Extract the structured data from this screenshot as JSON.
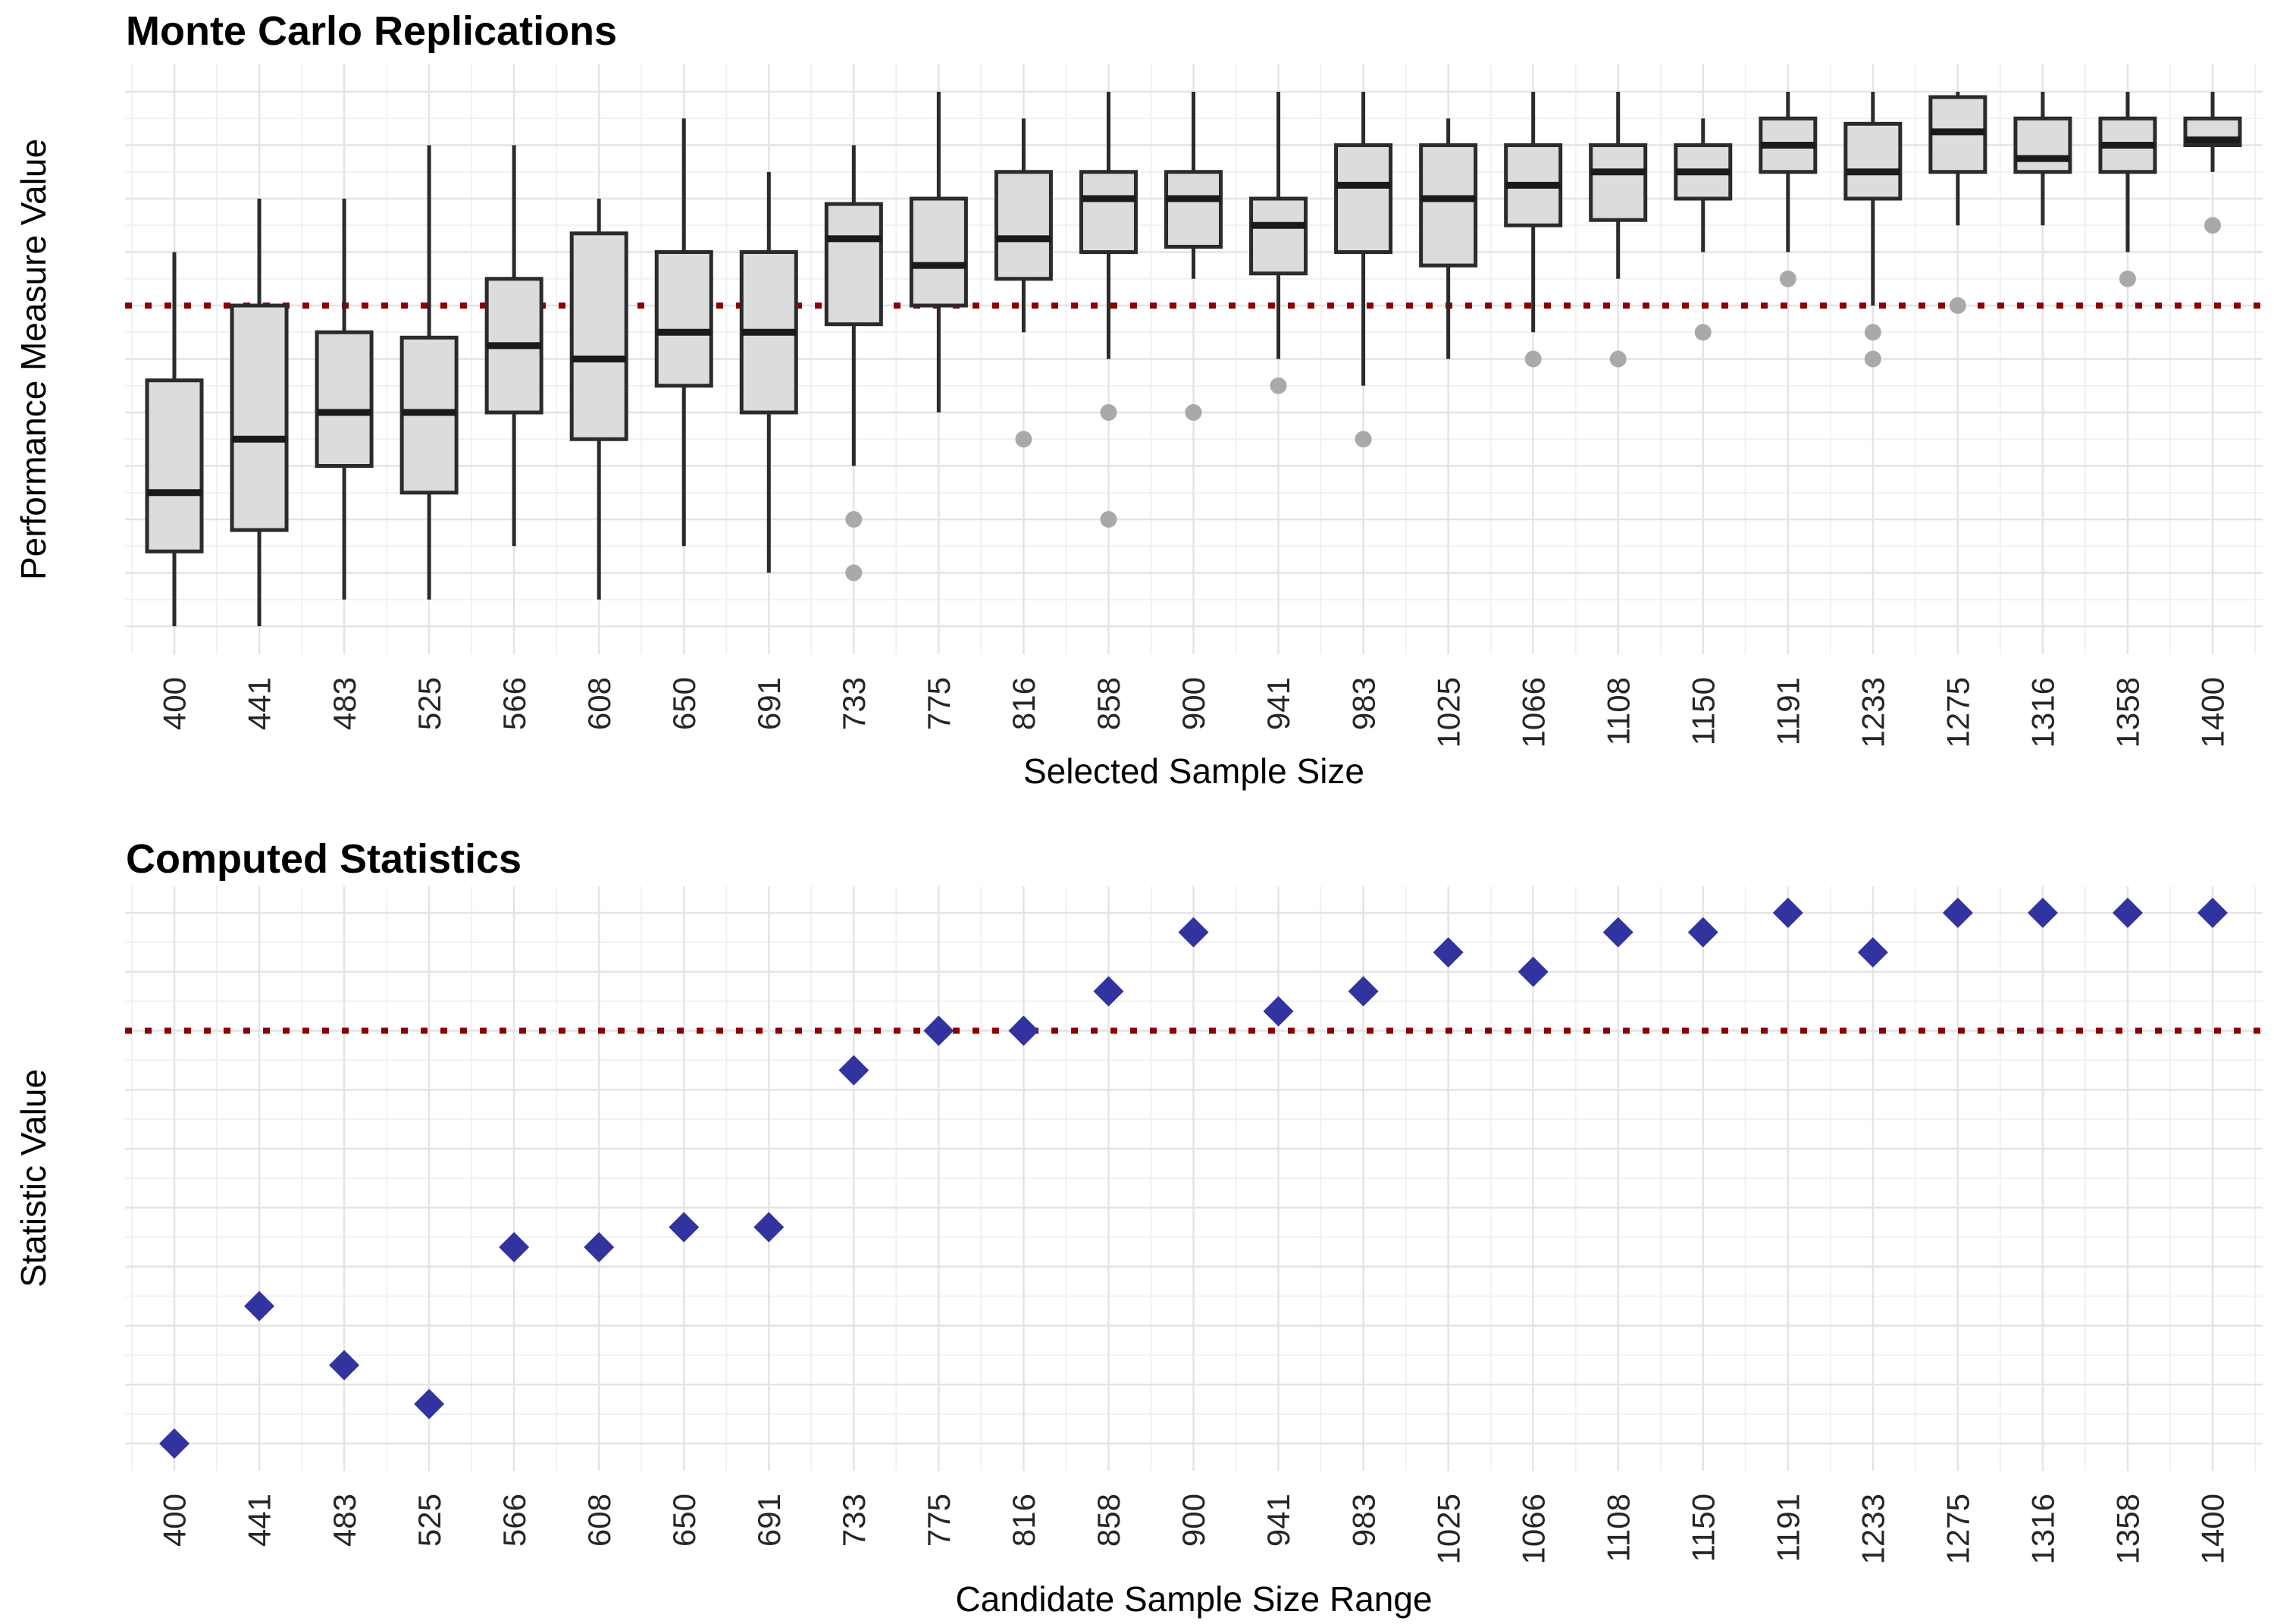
{
  "figure": {
    "background": "#FFFFFF"
  },
  "colors": {
    "box_fill": "#DCDCDC",
    "box_border": "#2B2B2B",
    "median": "#1A1A1A",
    "whisker": "#2B2B2B",
    "outlier": "#A9A9A9",
    "reference_line": "#8B0000",
    "point": "#31339E",
    "grid_major": "#E4E4E4",
    "grid_minor": "#F1F1F1",
    "panel_border": "#4D4D4D",
    "panel_fill": "#FFFFFF",
    "tick_mark": "#333333",
    "tick_text": "#262626"
  },
  "chart_data": [
    {
      "type": "boxplot",
      "title": "Monte Carlo Replications",
      "xlabel": "Selected Sample Size",
      "ylabel": "Performance Measure Value",
      "ylim": [
        0.0,
        1.0
      ],
      "yticks": [
        0.0,
        0.1,
        0.2,
        0.3,
        0.4,
        0.5,
        0.6,
        0.7,
        0.8,
        0.9,
        1.0
      ],
      "reference_line": 0.6,
      "grid": true,
      "legend": "none",
      "categories": [
        400,
        441,
        483,
        525,
        566,
        608,
        650,
        691,
        733,
        775,
        816,
        858,
        900,
        941,
        983,
        1025,
        1066,
        1108,
        1150,
        1191,
        1233,
        1275,
        1316,
        1358,
        1400
      ],
      "boxes": [
        {
          "x": 400,
          "min": 0.0,
          "q1": 0.14,
          "median": 0.25,
          "q3": 0.46,
          "max": 0.7,
          "outliers": []
        },
        {
          "x": 441,
          "min": 0.0,
          "q1": 0.18,
          "median": 0.35,
          "q3": 0.6,
          "max": 0.8,
          "outliers": []
        },
        {
          "x": 483,
          "min": 0.05,
          "q1": 0.3,
          "median": 0.4,
          "q3": 0.55,
          "max": 0.8,
          "outliers": []
        },
        {
          "x": 525,
          "min": 0.05,
          "q1": 0.25,
          "median": 0.4,
          "q3": 0.54,
          "max": 0.9,
          "outliers": []
        },
        {
          "x": 566,
          "min": 0.15,
          "q1": 0.4,
          "median": 0.525,
          "q3": 0.65,
          "max": 0.9,
          "outliers": []
        },
        {
          "x": 608,
          "min": 0.05,
          "q1": 0.35,
          "median": 0.5,
          "q3": 0.735,
          "max": 0.8,
          "outliers": []
        },
        {
          "x": 650,
          "min": 0.15,
          "q1": 0.45,
          "median": 0.55,
          "q3": 0.7,
          "max": 0.95,
          "outliers": []
        },
        {
          "x": 691,
          "min": 0.1,
          "q1": 0.4,
          "median": 0.55,
          "q3": 0.7,
          "max": 0.85,
          "outliers": []
        },
        {
          "x": 733,
          "min": 0.3,
          "q1": 0.565,
          "median": 0.725,
          "q3": 0.79,
          "max": 0.9,
          "outliers": [
            0.2,
            0.1
          ]
        },
        {
          "x": 775,
          "min": 0.4,
          "q1": 0.6,
          "median": 0.675,
          "q3": 0.8,
          "max": 1.0,
          "outliers": []
        },
        {
          "x": 816,
          "min": 0.55,
          "q1": 0.65,
          "median": 0.725,
          "q3": 0.85,
          "max": 0.95,
          "outliers": [
            0.35
          ]
        },
        {
          "x": 858,
          "min": 0.5,
          "q1": 0.7,
          "median": 0.8,
          "q3": 0.85,
          "max": 1.0,
          "outliers": [
            0.4,
            0.2
          ]
        },
        {
          "x": 900,
          "min": 0.65,
          "q1": 0.71,
          "median": 0.8,
          "q3": 0.85,
          "max": 1.0,
          "outliers": [
            0.4
          ]
        },
        {
          "x": 941,
          "min": 0.5,
          "q1": 0.66,
          "median": 0.75,
          "q3": 0.8,
          "max": 1.0,
          "outliers": [
            0.45
          ]
        },
        {
          "x": 983,
          "min": 0.45,
          "q1": 0.7,
          "median": 0.825,
          "q3": 0.9,
          "max": 1.0,
          "outliers": [
            0.35
          ]
        },
        {
          "x": 1025,
          "min": 0.5,
          "q1": 0.675,
          "median": 0.8,
          "q3": 0.9,
          "max": 0.95,
          "outliers": []
        },
        {
          "x": 1066,
          "min": 0.55,
          "q1": 0.75,
          "median": 0.825,
          "q3": 0.9,
          "max": 1.0,
          "outliers": [
            0.5
          ]
        },
        {
          "x": 1108,
          "min": 0.65,
          "q1": 0.76,
          "median": 0.85,
          "q3": 0.9,
          "max": 1.0,
          "outliers": [
            0.5
          ]
        },
        {
          "x": 1150,
          "min": 0.7,
          "q1": 0.8,
          "median": 0.85,
          "q3": 0.9,
          "max": 0.95,
          "outliers": [
            0.55
          ]
        },
        {
          "x": 1191,
          "min": 0.7,
          "q1": 0.85,
          "median": 0.9,
          "q3": 0.95,
          "max": 1.0,
          "outliers": [
            0.65
          ]
        },
        {
          "x": 1233,
          "min": 0.6,
          "q1": 0.8,
          "median": 0.85,
          "q3": 0.94,
          "max": 1.0,
          "outliers": [
            0.55,
            0.5
          ]
        },
        {
          "x": 1275,
          "min": 0.75,
          "q1": 0.85,
          "median": 0.925,
          "q3": 0.99,
          "max": 1.0,
          "outliers": [
            0.6
          ]
        },
        {
          "x": 1316,
          "min": 0.75,
          "q1": 0.85,
          "median": 0.875,
          "q3": 0.95,
          "max": 1.0,
          "outliers": []
        },
        {
          "x": 1358,
          "min": 0.7,
          "q1": 0.85,
          "median": 0.9,
          "q3": 0.95,
          "max": 1.0,
          "outliers": [
            0.65
          ]
        },
        {
          "x": 1400,
          "min": 0.85,
          "q1": 0.9,
          "median": 0.91,
          "q3": 0.95,
          "max": 1.0,
          "outliers": [
            0.75
          ]
        }
      ]
    },
    {
      "type": "scatter",
      "title": "Computed Statistics",
      "xlabel": "Candidate Sample Size Range",
      "ylabel": "Statistic Value",
      "ylim": [
        0.1,
        1.0
      ],
      "yticks": [
        0.1,
        0.2,
        0.3,
        0.4,
        0.5,
        0.6,
        0.7,
        0.8,
        0.9,
        1.0
      ],
      "reference_line": 0.8,
      "grid": true,
      "legend": "none",
      "marker": "diamond",
      "categories": [
        400,
        441,
        483,
        525,
        566,
        608,
        650,
        691,
        733,
        775,
        816,
        858,
        900,
        941,
        983,
        1025,
        1066,
        1108,
        1150,
        1191,
        1233,
        1275,
        1316,
        1358,
        1400
      ],
      "values": [
        0.1,
        0.333,
        0.233,
        0.167,
        0.433,
        0.433,
        0.467,
        0.467,
        0.733,
        0.8,
        0.8,
        0.867,
        0.967,
        0.833,
        0.867,
        0.933,
        0.9,
        0.967,
        0.967,
        1.0,
        0.933,
        1.0,
        1.0,
        1.0,
        1.0
      ]
    }
  ]
}
